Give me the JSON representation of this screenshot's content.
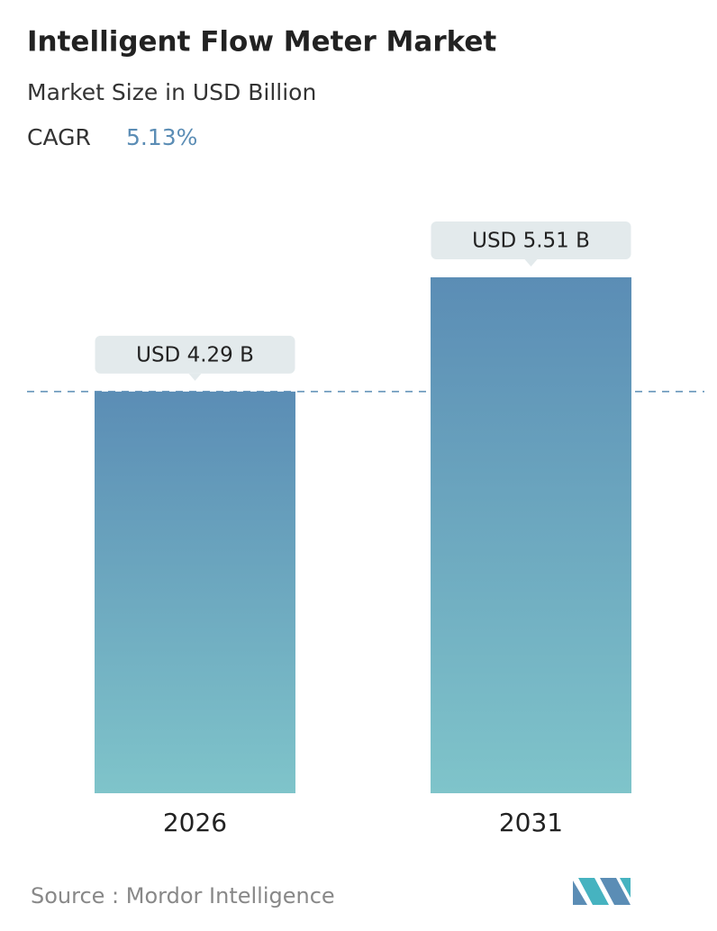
{
  "chart_data": {
    "type": "bar",
    "title": "Intelligent Flow Meter Market",
    "subtitle": "Market Size in USD Billion",
    "cagr_label": "CAGR",
    "cagr_value": "5.13%",
    "categories": [
      "2026",
      "2031"
    ],
    "values": [
      4.29,
      5.51
    ],
    "value_labels": [
      "USD 4.29 B",
      "USD 5.51 B"
    ],
    "color_top": "#5b8db5",
    "color_bottom": "#7fc4ca",
    "source": "Source :  Mordor Intelligence"
  }
}
